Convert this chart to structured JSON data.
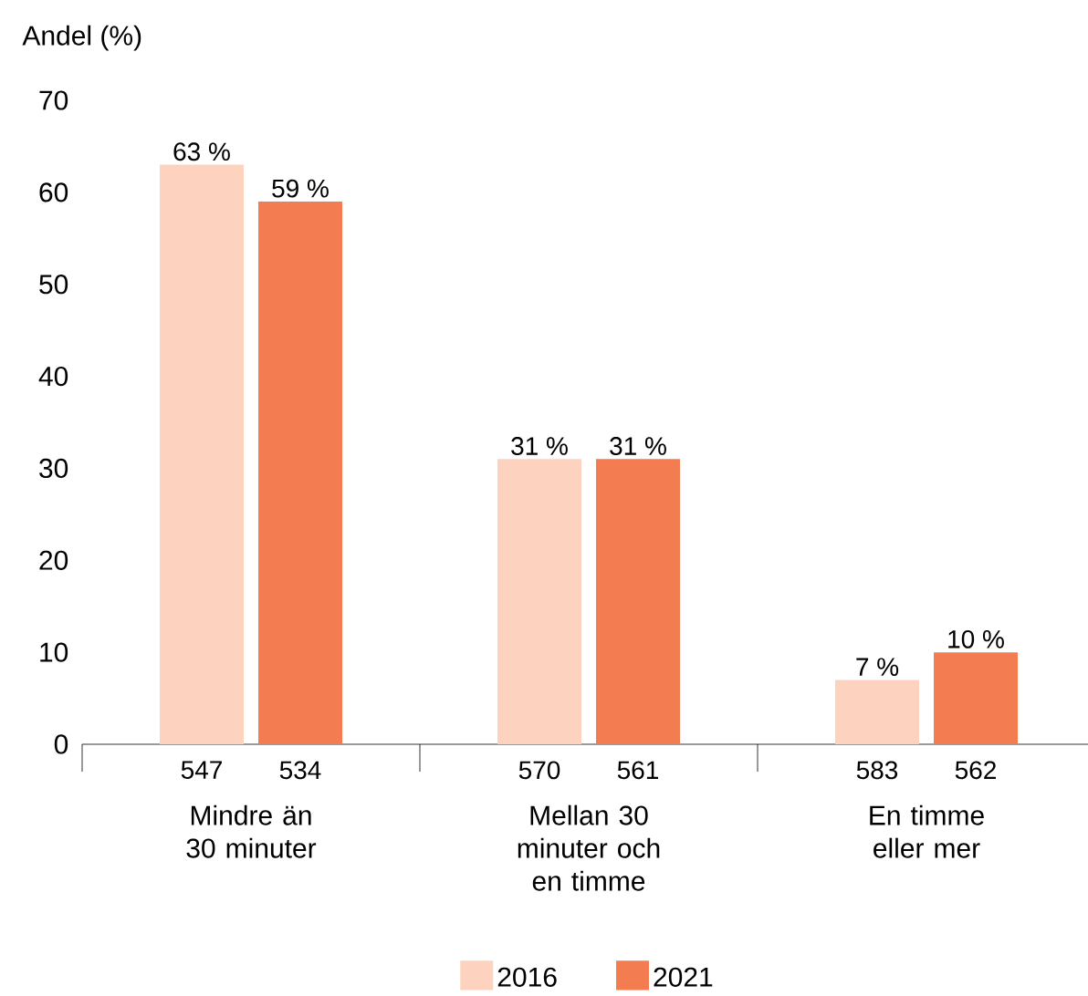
{
  "chart_data": {
    "type": "bar",
    "ylabel": "Andel (%)",
    "categories": [
      "Mindre än 30 minuter",
      "Mellan 30 minuter och en timme",
      "En timme eller mer"
    ],
    "series": [
      {
        "name": "2016",
        "color": "#fdd3bf",
        "values": [
          63,
          31,
          7
        ],
        "value_labels": [
          "63 %",
          "31 %",
          "7 %"
        ]
      },
      {
        "name": "2021",
        "color": "#f47c51",
        "values": [
          59,
          31,
          10
        ],
        "value_labels": [
          "59 %",
          "31 %",
          "10 %"
        ]
      }
    ],
    "ylim": [
      0,
      70
    ],
    "yticks": [
      0,
      10,
      20,
      30,
      40,
      50,
      60,
      70
    ],
    "legend": "bottom",
    "annotations": [
      "547",
      "534",
      "570",
      "561",
      "583",
      "562"
    ]
  }
}
